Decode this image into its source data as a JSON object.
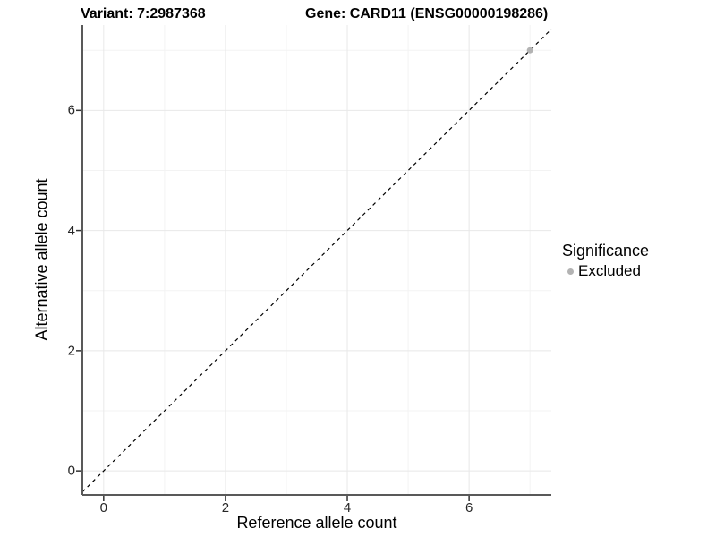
{
  "header": {
    "variant_title": "Variant: 7:2987368",
    "gene_title": "Gene: CARD11 (ENSG00000198286)"
  },
  "chart_data": {
    "type": "scatter",
    "title": "Variant: 7:2987368    Gene: CARD11 (ENSG00000198286)",
    "xlabel": "Reference allele count",
    "ylabel": "Alternative allele count",
    "xlim": [
      -0.35,
      7.35
    ],
    "ylim": [
      -0.4,
      7.42
    ],
    "xticks": [
      0,
      2,
      4,
      6
    ],
    "yticks": [
      0,
      2,
      4,
      6
    ],
    "minor_xticks": [
      1,
      3,
      5,
      7
    ],
    "minor_yticks": [
      1,
      3,
      5,
      7
    ],
    "grid": true,
    "series": [
      {
        "name": "Excluded",
        "color": "#b3b3b3",
        "points": [
          {
            "x": 7,
            "y": 7
          }
        ]
      }
    ],
    "reference_line": {
      "kind": "abline",
      "slope": 1,
      "intercept": 0,
      "style": "dashed",
      "color": "#000000"
    },
    "legend": {
      "title": "Significance",
      "position": "right",
      "entries": [
        {
          "label": "Excluded",
          "color": "#b3b3b3"
        }
      ]
    },
    "colors": {
      "grid_major": "#e8e8e8",
      "grid_minor": "#f3f3f3",
      "axis_line": "#595959",
      "tick_mark": "#333333",
      "panel_bg": "#ffffff"
    }
  }
}
